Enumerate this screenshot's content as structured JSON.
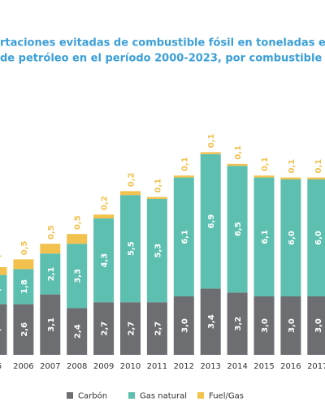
{
  "chart_data": {
    "type": "stacked-bar",
    "title": [
      "rtaciones evitadas de combustible fósil en toneladas equival",
      "de petróleo en el período 2000-2023, por combustible fósil"
    ],
    "categories": [
      "05",
      "2006",
      "2007",
      "2008",
      "2009",
      "2010",
      "2011",
      "2012",
      "2013",
      "2014",
      "2015",
      "2016",
      "2017"
    ],
    "series": [
      {
        "name": "Carbón",
        "color": "#6d6e71",
        "values": [
          2.6,
          2.6,
          3.1,
          2.4,
          2.7,
          2.7,
          2.7,
          3.0,
          3.4,
          3.2,
          3.0,
          3.0,
          3.0
        ],
        "value_labels": [
          "2,6",
          "2,6",
          "3,1",
          "2,4",
          "2,7",
          "2,7",
          "2,7",
          "3,0",
          "3,4",
          "3,2",
          "3,0",
          "3,0",
          "3,0"
        ]
      },
      {
        "name": "Gas natural",
        "color": "#5dbfb0",
        "values": [
          1.5,
          1.8,
          2.1,
          3.3,
          4.3,
          5.5,
          5.3,
          6.1,
          6.9,
          6.5,
          6.1,
          6.0,
          6.0
        ],
        "value_labels": [
          "1,5",
          "1,8",
          "2,1",
          "3,3",
          "4,3",
          "5,5",
          "5,3",
          "6,1",
          "6,9",
          "6,5",
          "6,1",
          "6,0",
          "6,0"
        ]
      },
      {
        "name": "Fuel/Gas",
        "color": "#f2c14e",
        "values": [
          0.4,
          0.5,
          0.5,
          0.5,
          0.2,
          0.2,
          0.1,
          0.1,
          0.1,
          0.1,
          0.1,
          0.1,
          0.1
        ],
        "value_labels": [
          "0,4",
          "0,5",
          "0,5",
          "0,5",
          "0,2",
          "0,2",
          "0,1",
          "0,1",
          "0,1",
          "0,1",
          "0,1",
          "0,1",
          "0,1"
        ]
      }
    ],
    "ylim": [
      0,
      10.5
    ]
  }
}
